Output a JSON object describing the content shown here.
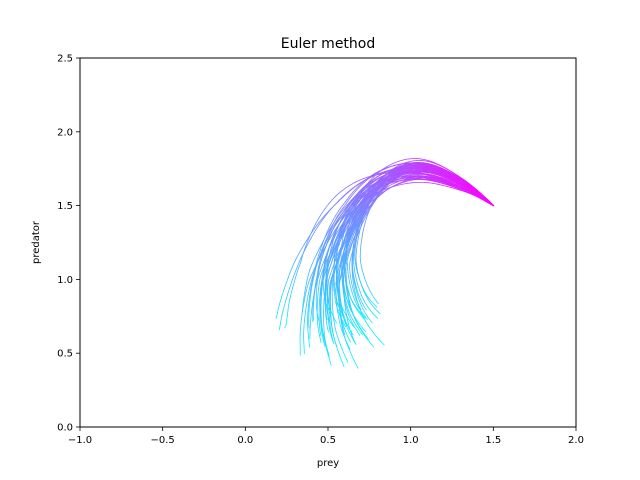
{
  "chart_data": {
    "type": "line",
    "title": "Euler method",
    "xlabel": "prey",
    "ylabel": "predator",
    "xlim": [
      -1.0,
      2.0
    ],
    "ylim": [
      0.0,
      2.5
    ],
    "xticks": [
      -1.0,
      -0.5,
      0.0,
      0.5,
      1.0,
      1.5,
      2.0
    ],
    "xtick_labels": [
      "−1.0",
      "−0.5",
      "0.0",
      "0.5",
      "1.0",
      "1.5",
      "2.0"
    ],
    "yticks": [
      0.0,
      0.5,
      1.0,
      1.5,
      2.0,
      2.5
    ],
    "ytick_labels": [
      "0.0",
      "0.5",
      "1.0",
      "1.5",
      "2.0",
      "2.5"
    ],
    "grid": false,
    "colormap": "cool",
    "colormap_start": "#00ffff",
    "colormap_end": "#ff00ff",
    "series_description": "ensemble of ~60 noisy trajectories starting at (1.5, 1.5)",
    "start_point": [
      1.5,
      1.5
    ],
    "mean_trajectory": [
      [
        1.5,
        1.5
      ],
      [
        1.38,
        1.59
      ],
      [
        1.25,
        1.66
      ],
      [
        1.12,
        1.71
      ],
      [
        1.0,
        1.72
      ],
      [
        0.88,
        1.69
      ],
      [
        0.78,
        1.63
      ],
      [
        0.69,
        1.53
      ],
      [
        0.62,
        1.4
      ],
      [
        0.57,
        1.25
      ],
      [
        0.54,
        1.1
      ],
      [
        0.54,
        0.95
      ],
      [
        0.56,
        0.82
      ],
      [
        0.6,
        0.72
      ],
      [
        0.64,
        0.65
      ]
    ],
    "end_points": [
      [
        0.22,
        0.62
      ],
      [
        0.35,
        0.38
      ],
      [
        0.4,
        0.55
      ],
      [
        0.48,
        0.45
      ],
      [
        0.55,
        0.37
      ],
      [
        0.6,
        0.42
      ],
      [
        0.7,
        0.4
      ],
      [
        0.75,
        0.55
      ],
      [
        0.8,
        0.6
      ],
      [
        0.85,
        0.65
      ],
      [
        0.9,
        0.74
      ],
      [
        0.65,
        0.5
      ],
      [
        0.5,
        0.6
      ],
      [
        0.58,
        0.7
      ],
      [
        0.45,
        0.52
      ],
      [
        0.72,
        0.68
      ],
      [
        0.62,
        0.58
      ],
      [
        0.78,
        0.72
      ],
      [
        0.52,
        0.48
      ],
      [
        0.68,
        0.62
      ]
    ],
    "n_trajectories": 60
  }
}
